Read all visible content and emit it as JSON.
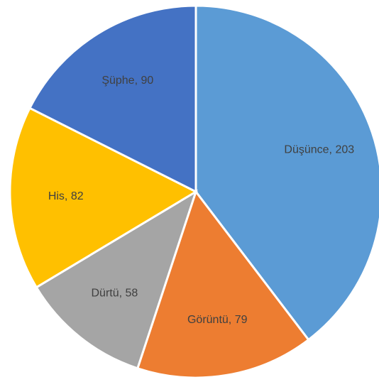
{
  "chart_data": {
    "type": "pie",
    "values": [
      203,
      79,
      58,
      82,
      90
    ],
    "value_labels": [
      "Düşünce, 203",
      "Görüntü, 79",
      "Dürtü, 58",
      "His, 82",
      "Şüphe, 90"
    ],
    "colors": [
      "#5b9bd5",
      "#ed7d31",
      "#a5a5a5",
      "#ffc000",
      "#4472c4"
    ],
    "start_angle": 0,
    "direction": "clockwise"
  }
}
